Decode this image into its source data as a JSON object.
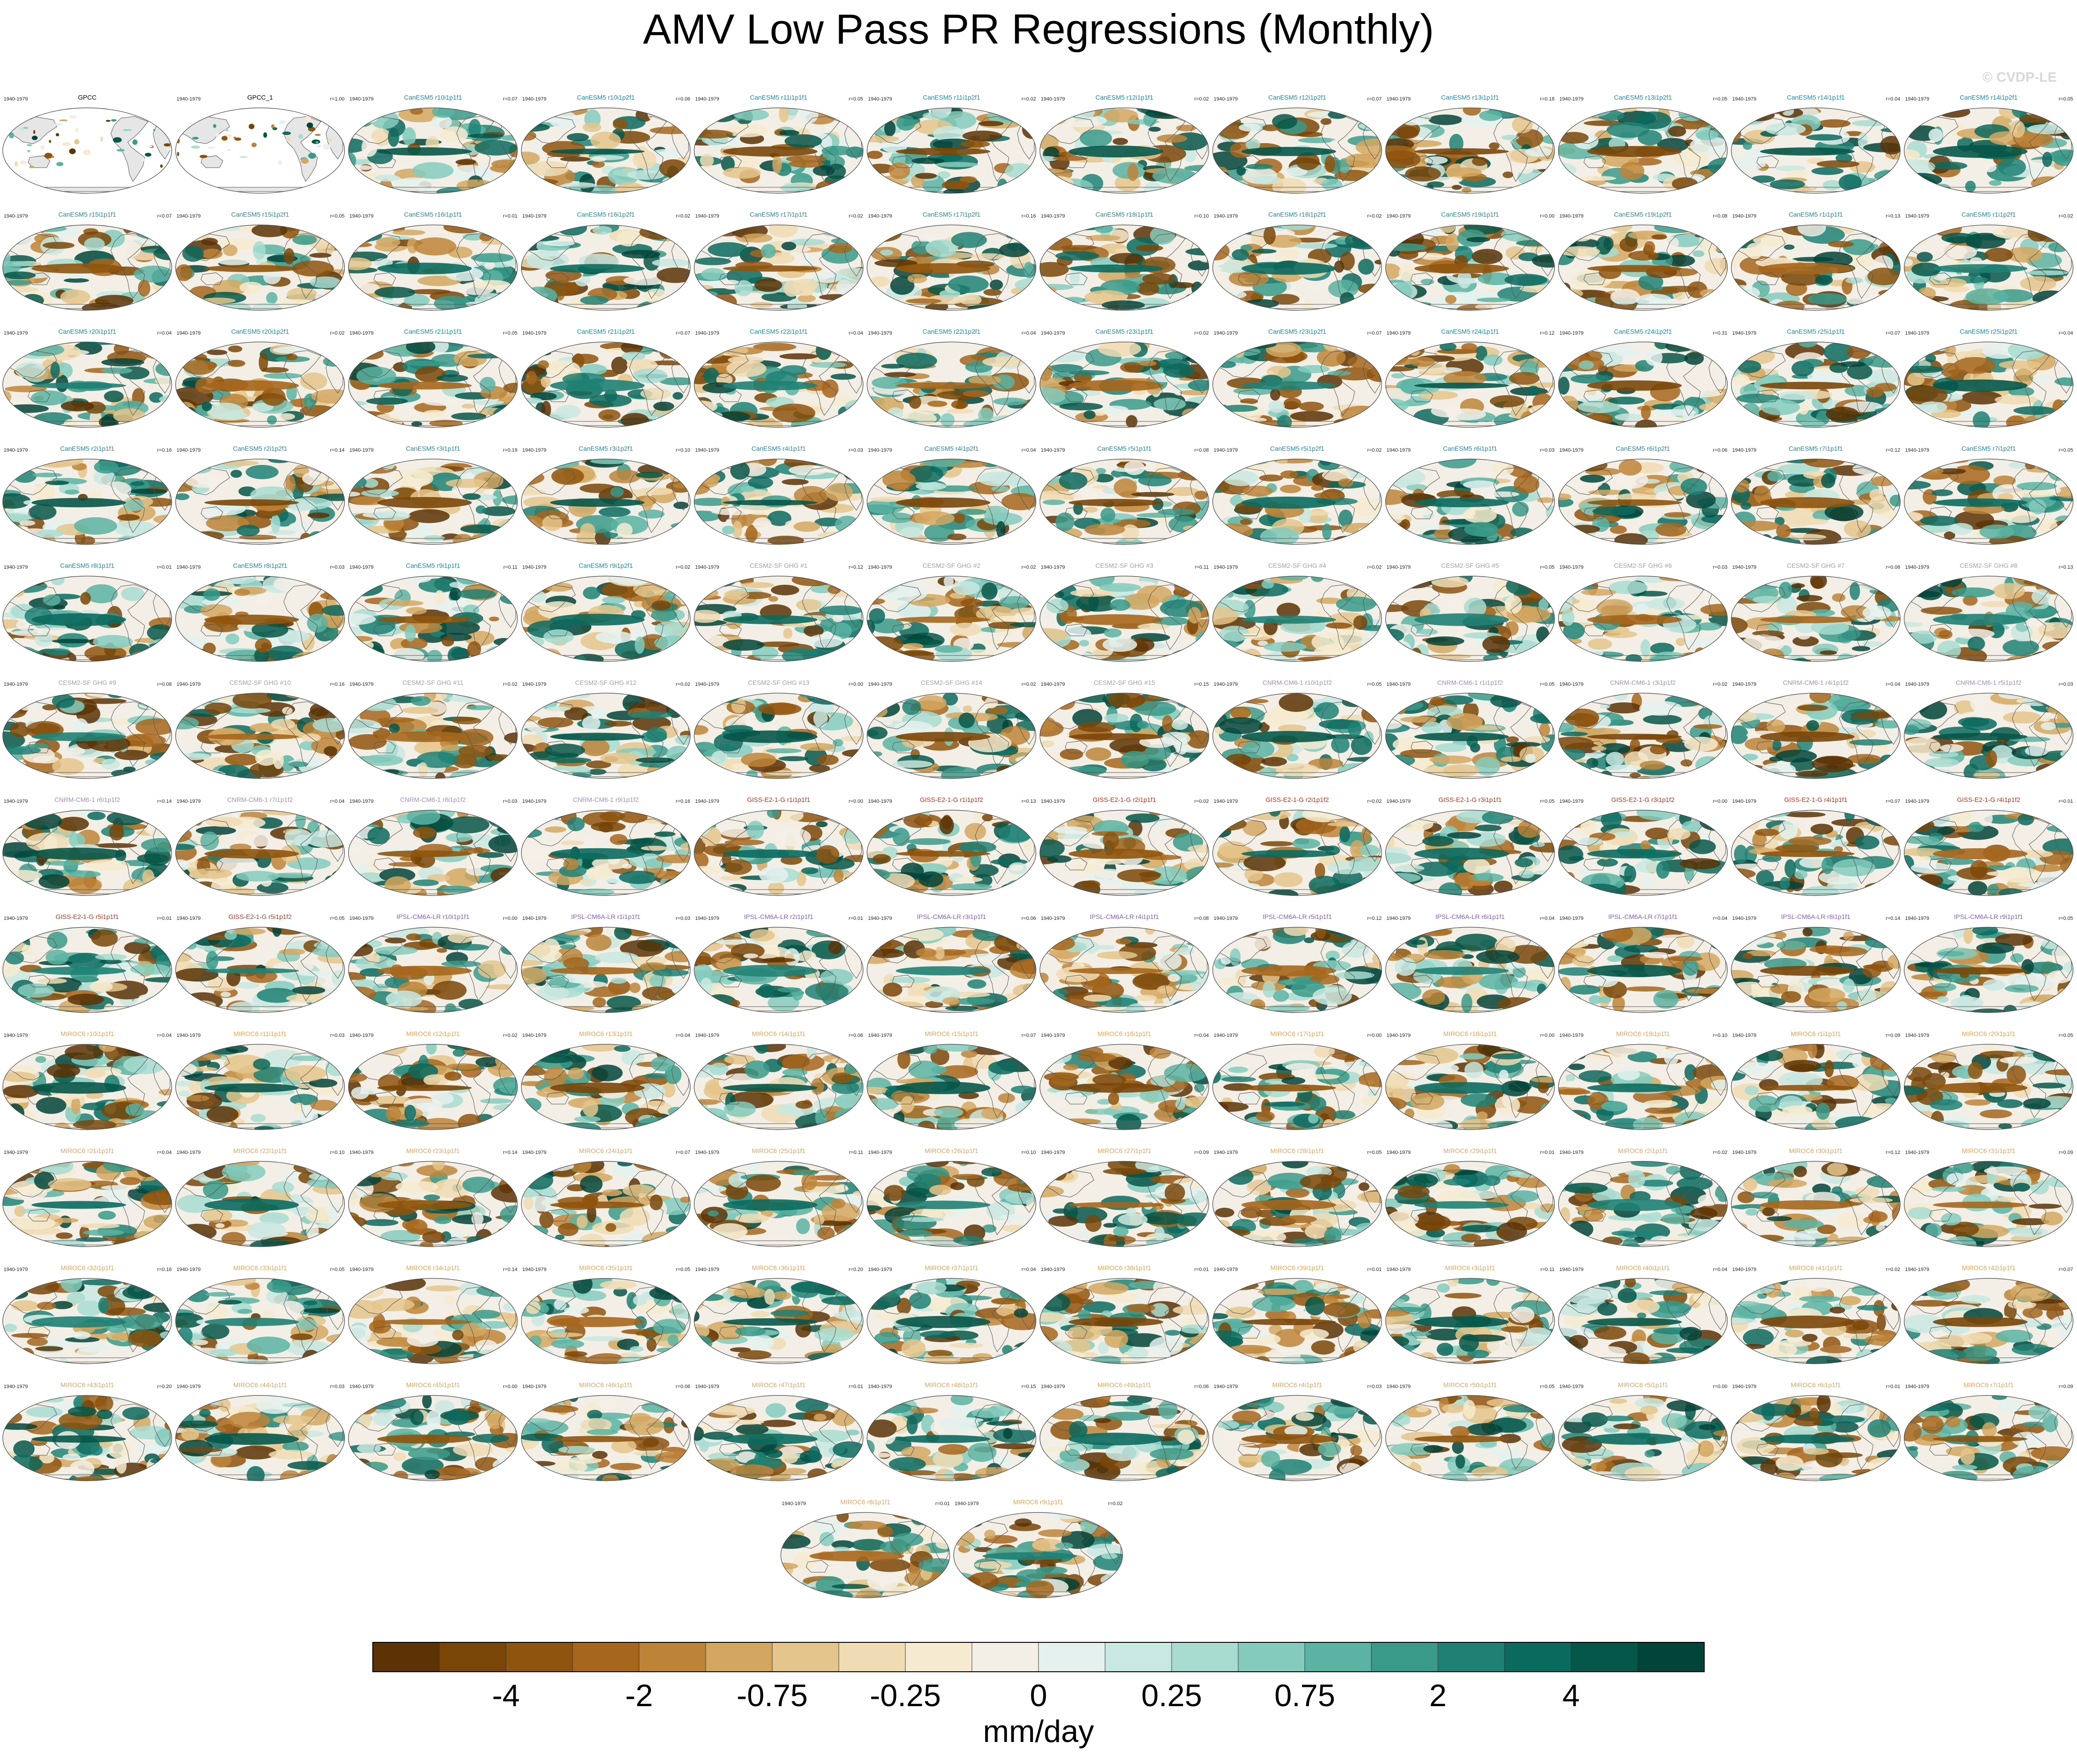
{
  "title": "AMV Low Pass PR Regressions (Monthly)",
  "copyright": "© CVDP-LE",
  "colors": {
    "obs_title": "#000000",
    "canesm5": "#1e8aa6",
    "cesm2": "#a0a0a0",
    "cnrm": "#a58cb4",
    "giss": "#b8331f",
    "ipsl": "#8a5ac4",
    "miroc6": "#e0a45a",
    "land_obs": "#e6e6e6",
    "coast": "#555555"
  },
  "chart_data": {
    "type": "heatmap",
    "layout": "small-multiples, 12 columns x 13 rows",
    "period": "1940-1979",
    "panels": [
      {
        "title": "GPCC",
        "group": "obs",
        "r": ""
      },
      {
        "title": "GPCC_1",
        "group": "obs",
        "r": "r=1.00"
      },
      {
        "title": "CanESM5 r10i1p1f1",
        "group": "canesm5",
        "r": "r=0.07"
      },
      {
        "title": "CanESM5 r10i1p2f1",
        "group": "canesm5",
        "r": "r=0.06"
      },
      {
        "title": "CanESM5 r11i1p1f1",
        "group": "canesm5",
        "r": "r=0.05"
      },
      {
        "title": "CanESM5 r11i1p2f1",
        "group": "canesm5",
        "r": "r=0.02"
      },
      {
        "title": "CanESM5 r12i1p1f1",
        "group": "canesm5",
        "r": "r=0.02"
      },
      {
        "title": "CanESM5 r12i1p2f1",
        "group": "canesm5",
        "r": "r=0.07"
      },
      {
        "title": "CanESM5 r13i1p1f1",
        "group": "canesm5",
        "r": "r=0.18"
      },
      {
        "title": "CanESM5 r13i1p2f1",
        "group": "canesm5",
        "r": "r=0.05"
      },
      {
        "title": "CanESM5 r14i1p1f1",
        "group": "canesm5",
        "r": "r=0.04"
      },
      {
        "title": "CanESM5 r14i1p2f1",
        "group": "canesm5",
        "r": "r=0.05"
      },
      {
        "title": "CanESM5 r15i1p1f1",
        "group": "canesm5",
        "r": "r=0.07"
      },
      {
        "title": "CanESM5 r15i1p2f1",
        "group": "canesm5",
        "r": "r=0.05"
      },
      {
        "title": "CanESM5 r16i1p1f1",
        "group": "canesm5",
        "r": "r=0.01"
      },
      {
        "title": "CanESM5 r16i1p2f1",
        "group": "canesm5",
        "r": "r=0.02"
      },
      {
        "title": "CanESM5 r17i1p1f1",
        "group": "canesm5",
        "r": "r=0.02"
      },
      {
        "title": "CanESM5 r17i1p2f1",
        "group": "canesm5",
        "r": "r=0.16"
      },
      {
        "title": "CanESM5 r18i1p1f1",
        "group": "canesm5",
        "r": "r=0.10"
      },
      {
        "title": "CanESM5 r18i1p2f1",
        "group": "canesm5",
        "r": "r=0.02"
      },
      {
        "title": "CanESM5 r19i1p1f1",
        "group": "canesm5",
        "r": "r=0.00"
      },
      {
        "title": "CanESM5 r19i1p2f1",
        "group": "canesm5",
        "r": "r=0.08"
      },
      {
        "title": "CanESM5 r1i1p1f1",
        "group": "canesm5",
        "r": "r=0.13"
      },
      {
        "title": "CanESM5 r1i1p2f1",
        "group": "canesm5",
        "r": "r=0.02"
      },
      {
        "title": "CanESM5 r20i1p1f1",
        "group": "canesm5",
        "r": "r=0.04"
      },
      {
        "title": "CanESM5 r20i1p2f1",
        "group": "canesm5",
        "r": "r=0.02"
      },
      {
        "title": "CanESM5 r21i1p1f1",
        "group": "canesm5",
        "r": "r=0.05"
      },
      {
        "title": "CanESM5 r21i1p2f1",
        "group": "canesm5",
        "r": "r=0.07"
      },
      {
        "title": "CanESM5 r22i1p1f1",
        "group": "canesm5",
        "r": "r=0.04"
      },
      {
        "title": "CanESM5 r22i1p2f1",
        "group": "canesm5",
        "r": "r=0.04"
      },
      {
        "title": "CanESM5 r23i1p1f1",
        "group": "canesm5",
        "r": "r=0.02"
      },
      {
        "title": "CanESM5 r23i1p2f1",
        "group": "canesm5",
        "r": "r=0.07"
      },
      {
        "title": "CanESM5 r24i1p1f1",
        "group": "canesm5",
        "r": "r=0.12"
      },
      {
        "title": "CanESM5 r24i1p2f1",
        "group": "canesm5",
        "r": "r=0.31"
      },
      {
        "title": "CanESM5 r25i1p1f1",
        "group": "canesm5",
        "r": "r=0.07"
      },
      {
        "title": "CanESM5 r25i1p2f1",
        "group": "canesm5",
        "r": "r=0.04"
      },
      {
        "title": "CanESM5 r2i1p1f1",
        "group": "canesm5",
        "r": "r=0.16"
      },
      {
        "title": "CanESM5 r2i1p2f1",
        "group": "canesm5",
        "r": "r=0.14"
      },
      {
        "title": "CanESM5 r3i1p1f1",
        "group": "canesm5",
        "r": "r=0.19"
      },
      {
        "title": "CanESM5 r3i1p2f1",
        "group": "canesm5",
        "r": "r=0.10"
      },
      {
        "title": "CanESM5 r4i1p1f1",
        "group": "canesm5",
        "r": "r=0.03"
      },
      {
        "title": "CanESM5 r4i1p2f1",
        "group": "canesm5",
        "r": "r=0.04"
      },
      {
        "title": "CanESM5 r5i1p1f1",
        "group": "canesm5",
        "r": "r=0.08"
      },
      {
        "title": "CanESM5 r5i1p2f1",
        "group": "canesm5",
        "r": "r=0.02"
      },
      {
        "title": "CanESM5 r6i1p1f1",
        "group": "canesm5",
        "r": "r=0.03"
      },
      {
        "title": "CanESM5 r6i1p2f1",
        "group": "canesm5",
        "r": "r=0.06"
      },
      {
        "title": "CanESM5 r7i1p1f1",
        "group": "canesm5",
        "r": "r=0.12"
      },
      {
        "title": "CanESM5 r7i1p2f1",
        "group": "canesm5",
        "r": "r=0.05"
      },
      {
        "title": "CanESM5 r8i1p1f1",
        "group": "canesm5",
        "r": "r=0.01"
      },
      {
        "title": "CanESM5 r8i1p2f1",
        "group": "canesm5",
        "r": "r=0.03"
      },
      {
        "title": "CanESM5 r9i1p1f1",
        "group": "canesm5",
        "r": "r=0.11"
      },
      {
        "title": "CanESM5 r9i1p2f1",
        "group": "canesm5",
        "r": "r=0.02"
      },
      {
        "title": "CESM2-SF GHG #1",
        "group": "cesm2",
        "r": "r=0.12"
      },
      {
        "title": "CESM2-SF GHG #2",
        "group": "cesm2",
        "r": "r=0.02"
      },
      {
        "title": "CESM2-SF GHG #3",
        "group": "cesm2",
        "r": "r=0.11"
      },
      {
        "title": "CESM2-SF GHG #4",
        "group": "cesm2",
        "r": "r=0.02"
      },
      {
        "title": "CESM2-SF GHG #5",
        "group": "cesm2",
        "r": "r=0.05"
      },
      {
        "title": "CESM2-SF GHG #6",
        "group": "cesm2",
        "r": "r=0.03"
      },
      {
        "title": "CESM2-SF GHG #7",
        "group": "cesm2",
        "r": "r=0.06"
      },
      {
        "title": "CESM2-SF GHG #8",
        "group": "cesm2",
        "r": "r=0.13"
      },
      {
        "title": "CESM2-SF GHG #9",
        "group": "cesm2",
        "r": "r=0.08"
      },
      {
        "title": "CESM2-SF GHG #10",
        "group": "cesm2",
        "r": "r=0.16"
      },
      {
        "title": "CESM2-SF GHG #11",
        "group": "cesm2",
        "r": "r=0.02"
      },
      {
        "title": "CESM2-SF GHG #12",
        "group": "cesm2",
        "r": "r=0.02"
      },
      {
        "title": "CESM2-SF GHG #13",
        "group": "cesm2",
        "r": "r=0.00"
      },
      {
        "title": "CESM2-SF GHG #14",
        "group": "cesm2",
        "r": "r=0.02"
      },
      {
        "title": "CESM2-SF GHG #15",
        "group": "cesm2",
        "r": "r=0.15"
      },
      {
        "title": "CNRM-CM6-1 r10i1p1f2",
        "group": "cnrm",
        "r": "r=0.05"
      },
      {
        "title": "CNRM-CM6-1 r1i1p1f2",
        "group": "cnrm",
        "r": "r=0.05"
      },
      {
        "title": "CNRM-CM6-1 r3i1p1f2",
        "group": "cnrm",
        "r": "r=0.02"
      },
      {
        "title": "CNRM-CM6-1 r4i1p1f2",
        "group": "cnrm",
        "r": "r=0.04"
      },
      {
        "title": "CNRM-CM6-1 r5i1p1f2",
        "group": "cnrm",
        "r": "r=0.03"
      },
      {
        "title": "CNRM-CM6-1 r6i1p1f2",
        "group": "cnrm",
        "r": "r=0.14"
      },
      {
        "title": "CNRM-CM6-1 r7i1p1f2",
        "group": "cnrm",
        "r": "r=0.04"
      },
      {
        "title": "CNRM-CM6-1 r8i1p1f2",
        "group": "cnrm",
        "r": "r=0.03"
      },
      {
        "title": "CNRM-CM6-1 r9i1p1f2",
        "group": "cnrm",
        "r": "r=0.16"
      },
      {
        "title": "GISS-E2-1-G r1i1p1f1",
        "group": "giss",
        "r": "r=0.00"
      },
      {
        "title": "GISS-E2-1-G r1i1p1f2",
        "group": "giss",
        "r": "r=0.13"
      },
      {
        "title": "GISS-E2-1-G r2i1p1f1",
        "group": "giss",
        "r": "r=0.02"
      },
      {
        "title": "GISS-E2-1-G r2i1p1f2",
        "group": "giss",
        "r": "r=0.02"
      },
      {
        "title": "GISS-E2-1-G r3i1p1f1",
        "group": "giss",
        "r": "r=0.05"
      },
      {
        "title": "GISS-E2-1-G r3i1p1f2",
        "group": "giss",
        "r": "r=0.00"
      },
      {
        "title": "GISS-E2-1-G r4i1p1f1",
        "group": "giss",
        "r": "r=0.07"
      },
      {
        "title": "GISS-E2-1-G r4i1p1f2",
        "group": "giss",
        "r": "r=0.01"
      },
      {
        "title": "GISS-E2-1-G r5i1p1f1",
        "group": "giss",
        "r": "r=0.01"
      },
      {
        "title": "GISS-E2-1-G r5i1p1f2",
        "group": "giss",
        "r": "r=0.05"
      },
      {
        "title": "IPSL-CM6A-LR r10i1p1f1",
        "group": "ipsl",
        "r": "r=0.00"
      },
      {
        "title": "IPSL-CM6A-LR r1i1p1f1",
        "group": "ipsl",
        "r": "r=0.03"
      },
      {
        "title": "IPSL-CM6A-LR r2i1p1f1",
        "group": "ipsl",
        "r": "r=0.01"
      },
      {
        "title": "IPSL-CM6A-LR r3i1p1f1",
        "group": "ipsl",
        "r": "r=0.06"
      },
      {
        "title": "IPSL-CM6A-LR r4i1p1f1",
        "group": "ipsl",
        "r": "r=0.08"
      },
      {
        "title": "IPSL-CM6A-LR r5i1p1f1",
        "group": "ipsl",
        "r": "r=0.12"
      },
      {
        "title": "IPSL-CM6A-LR r6i1p1f1",
        "group": "ipsl",
        "r": "r=0.04"
      },
      {
        "title": "IPSL-CM6A-LR r7i1p1f1",
        "group": "ipsl",
        "r": "r=0.04"
      },
      {
        "title": "IPSL-CM6A-LR r8i1p1f1",
        "group": "ipsl",
        "r": "r=0.14"
      },
      {
        "title": "IPSL-CM6A-LR r9i1p1f1",
        "group": "ipsl",
        "r": "r=0.05"
      },
      {
        "title": "MIROC6 r10i1p1f1",
        "group": "miroc6",
        "r": "r=0.04"
      },
      {
        "title": "MIROC6 r11i1p1f1",
        "group": "miroc6",
        "r": "r=0.03"
      },
      {
        "title": "MIROC6 r12i1p1f1",
        "group": "miroc6",
        "r": "r=0.02"
      },
      {
        "title": "MIROC6 r13i1p1f1",
        "group": "miroc6",
        "r": "r=0.04"
      },
      {
        "title": "MIROC6 r14i1p1f1",
        "group": "miroc6",
        "r": "r=0.06"
      },
      {
        "title": "MIROC6 r15i1p1f1",
        "group": "miroc6",
        "r": "r=0.07"
      },
      {
        "title": "MIROC6 r16i1p1f1",
        "group": "miroc6",
        "r": "r=0.04"
      },
      {
        "title": "MIROC6 r17i1p1f1",
        "group": "miroc6",
        "r": "r=0.00"
      },
      {
        "title": "MIROC6 r18i1p1f1",
        "group": "miroc6",
        "r": "r=0.00"
      },
      {
        "title": "MIROC6 r19i1p1f1",
        "group": "miroc6",
        "r": "r=0.10"
      },
      {
        "title": "MIROC6 r1i1p1f1",
        "group": "miroc6",
        "r": "r=0.09"
      },
      {
        "title": "MIROC6 r20i1p1f1",
        "group": "miroc6",
        "r": "r=0.05"
      },
      {
        "title": "MIROC6 r21i1p1f1",
        "group": "miroc6",
        "r": "r=0.04"
      },
      {
        "title": "MIROC6 r22i1p1f1",
        "group": "miroc6",
        "r": "r=0.10"
      },
      {
        "title": "MIROC6 r23i1p1f1",
        "group": "miroc6",
        "r": "r=0.14"
      },
      {
        "title": "MIROC6 r24i1p1f1",
        "group": "miroc6",
        "r": "r=0.07"
      },
      {
        "title": "MIROC6 r25i1p1f1",
        "group": "miroc6",
        "r": "r=0.11"
      },
      {
        "title": "MIROC6 r26i1p1f1",
        "group": "miroc6",
        "r": "r=0.10"
      },
      {
        "title": "MIROC6 r27i1p1f1",
        "group": "miroc6",
        "r": "r=0.09"
      },
      {
        "title": "MIROC6 r28i1p1f1",
        "group": "miroc6",
        "r": "r=0.05"
      },
      {
        "title": "MIROC6 r29i1p1f1",
        "group": "miroc6",
        "r": "r=0.01"
      },
      {
        "title": "MIROC6 r2i1p1f1",
        "group": "miroc6",
        "r": "r=0.02"
      },
      {
        "title": "MIROC6 r30i1p1f1",
        "group": "miroc6",
        "r": "r=0.12"
      },
      {
        "title": "MIROC6 r31i1p1f1",
        "group": "miroc6",
        "r": "r=0.09"
      },
      {
        "title": "MIROC6 r32i1p1f1",
        "group": "miroc6",
        "r": "r=0.16"
      },
      {
        "title": "MIROC6 r33i1p1f1",
        "group": "miroc6",
        "r": "r=0.05"
      },
      {
        "title": "MIROC6 r34i1p1f1",
        "group": "miroc6",
        "r": "r=0.14"
      },
      {
        "title": "MIROC6 r35i1p1f1",
        "group": "miroc6",
        "r": "r=0.05"
      },
      {
        "title": "MIROC6 r36i1p1f1",
        "group": "miroc6",
        "r": "r=0.20"
      },
      {
        "title": "MIROC6 r37i1p1f1",
        "group": "miroc6",
        "r": "r=0.04"
      },
      {
        "title": "MIROC6 r38i1p1f1",
        "group": "miroc6",
        "r": "r=0.01"
      },
      {
        "title": "MIROC6 r39i1p1f1",
        "group": "miroc6",
        "r": "r=0.01"
      },
      {
        "title": "MIROC6 r3i1p1f1",
        "group": "miroc6",
        "r": "r=0.11"
      },
      {
        "title": "MIROC6 r40i1p1f1",
        "group": "miroc6",
        "r": "r=0.04"
      },
      {
        "title": "MIROC6 r41i1p1f1",
        "group": "miroc6",
        "r": "r=0.02"
      },
      {
        "title": "MIROC6 r42i1p1f1",
        "group": "miroc6",
        "r": "r=0.07"
      },
      {
        "title": "MIROC6 r43i1p1f1",
        "group": "miroc6",
        "r": "r=0.20"
      },
      {
        "title": "MIROC6 r44i1p1f1",
        "group": "miroc6",
        "r": "r=0.03"
      },
      {
        "title": "MIROC6 r45i1p1f1",
        "group": "miroc6",
        "r": "r=0.00"
      },
      {
        "title": "MIROC6 r46i1p1f1",
        "group": "miroc6",
        "r": "r=0.06"
      },
      {
        "title": "MIROC6 r47i1p1f1",
        "group": "miroc6",
        "r": "r=0.01"
      },
      {
        "title": "MIROC6 r48i1p1f1",
        "group": "miroc6",
        "r": "r=0.15"
      },
      {
        "title": "MIROC6 r49i1p1f1",
        "group": "miroc6",
        "r": "r=0.06"
      },
      {
        "title": "MIROC6 r4i1p1f1",
        "group": "miroc6",
        "r": "r=0.03"
      },
      {
        "title": "MIROC6 r50i1p1f1",
        "group": "miroc6",
        "r": "r=0.05"
      },
      {
        "title": "MIROC6 r5i1p1f1",
        "group": "miroc6",
        "r": "r=0.00"
      },
      {
        "title": "MIROC6 r6i1p1f1",
        "group": "miroc6",
        "r": "r=0.01"
      },
      {
        "title": "MIROC6 r7i1p1f1",
        "group": "miroc6",
        "r": "r=0.09"
      },
      {
        "title": "MIROC6 r8i1p1f1",
        "group": "miroc6",
        "r": "r=0.01"
      },
      {
        "title": "MIROC6 r9i1p1f1",
        "group": "miroc6",
        "r": "r=0.02"
      }
    ],
    "colorbar": {
      "unit": "mm/day",
      "tick_labels": [
        "-4",
        "-2",
        "-0.75",
        "-0.25",
        "0",
        "0.25",
        "0.75",
        "2",
        "4"
      ],
      "colors": [
        "#5c3305",
        "#7a4608",
        "#8f540d",
        "#a6661c",
        "#bd8438",
        "#d3a760",
        "#e4c68c",
        "#f0dcb4",
        "#f6ebd0",
        "#f3efe6",
        "#e4f1ee",
        "#c9e8e1",
        "#a8dcd1",
        "#84cbbd",
        "#5bb3a3",
        "#3a9a8a",
        "#1f8174",
        "#0b6a5e",
        "#055749",
        "#02443a"
      ]
    }
  }
}
